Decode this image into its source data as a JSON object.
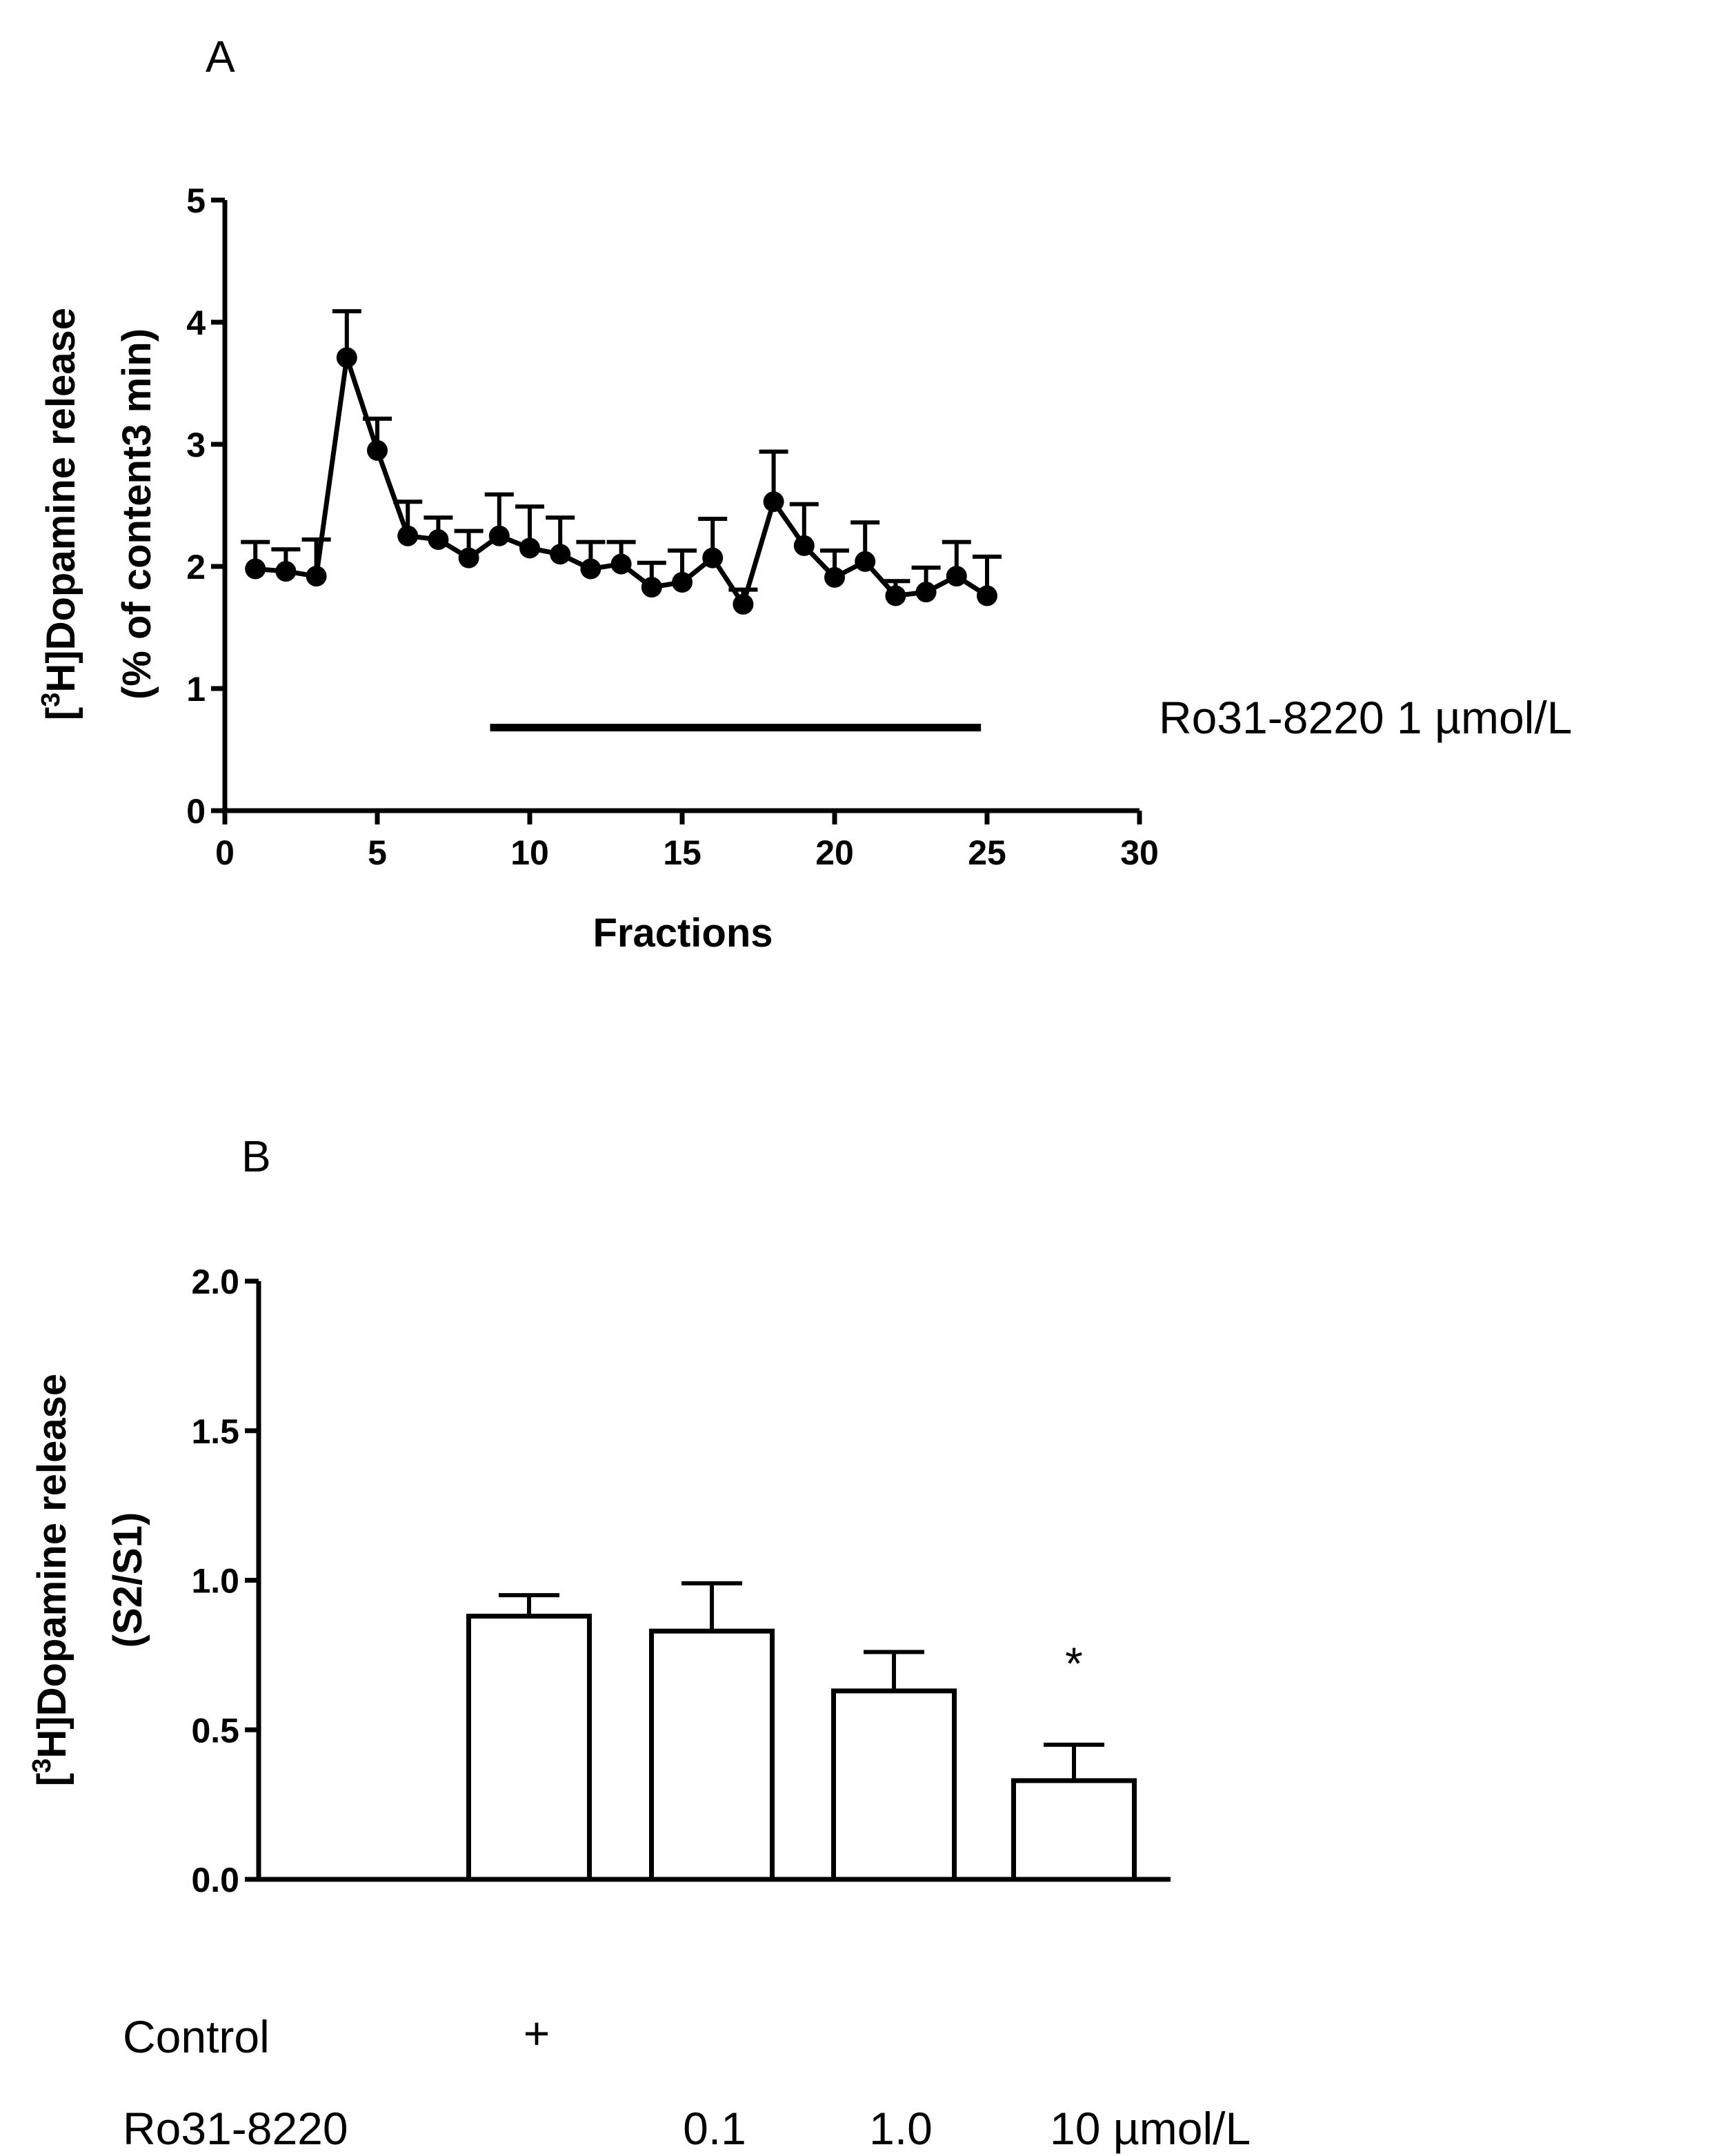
{
  "chart_data": [
    {
      "panel": "A",
      "type": "line",
      "ylabel_prefix": "[",
      "ylabel_sup": "3",
      "ylabel_line1_rest": "H]Dopamine release",
      "ylabel_line2": "(% of content3 min)",
      "xlabel": "Fractions",
      "xlim": [
        0,
        30
      ],
      "ylim": [
        0,
        5
      ],
      "xticks": [
        "0",
        "5",
        "10",
        "15",
        "20",
        "25",
        "30"
      ],
      "yticks": [
        "0",
        "1",
        "2",
        "3",
        "4",
        "5"
      ],
      "x": [
        1,
        2,
        3,
        4,
        5,
        6,
        7,
        8,
        9,
        10,
        11,
        12,
        13,
        14,
        15,
        16,
        17,
        18,
        19,
        20,
        21,
        22,
        23,
        24,
        25
      ],
      "values": [
        1.98,
        1.96,
        1.92,
        3.71,
        2.95,
        2.25,
        2.22,
        2.07,
        2.25,
        2.15,
        2.1,
        1.98,
        2.02,
        1.83,
        1.87,
        2.07,
        1.69,
        2.53,
        2.17,
        1.91,
        2.04,
        1.76,
        1.79,
        1.92,
        1.76
      ],
      "errors": [
        0.22,
        0.18,
        0.3,
        0.38,
        0.26,
        0.28,
        0.18,
        0.22,
        0.34,
        0.34,
        0.3,
        0.22,
        0.18,
        0.2,
        0.26,
        0.32,
        0.12,
        0.41,
        0.34,
        0.22,
        0.32,
        0.12,
        0.2,
        0.28,
        0.32
      ],
      "treatment_bar": {
        "x_start": 8.7,
        "x_end": 24.8,
        "y": 0.68
      },
      "treatment_label": "Ro31-8220 1 µmol/L"
    },
    {
      "panel": "B",
      "type": "bar",
      "ylabel_prefix": "[",
      "ylabel_sup": "3",
      "ylabel_line1_rest": "H]Dopamine release",
      "ylabel_line2": "(S2/S1)",
      "ylim": [
        0,
        2
      ],
      "yticks": [
        "0.0",
        "0.5",
        "1.0",
        "1.5",
        "2.0"
      ],
      "ytick_values": [
        0,
        0.5,
        1,
        1.5,
        2
      ],
      "categories": [
        "Control",
        "0.1",
        "1.0",
        "10"
      ],
      "values": [
        0.88,
        0.83,
        0.63,
        0.33
      ],
      "errors": [
        0.07,
        0.16,
        0.13,
        0.12
      ],
      "annotations": [
        "",
        "",
        "",
        "*"
      ]
    }
  ],
  "labels": {
    "panel_a": "A",
    "panel_b": "B",
    "row_control": "Control",
    "row_control_mark": "+",
    "row_drug": "Ro31-8220",
    "dose_1": "0.1",
    "dose_2": "1.0",
    "dose_3": "10 µmol/L"
  }
}
